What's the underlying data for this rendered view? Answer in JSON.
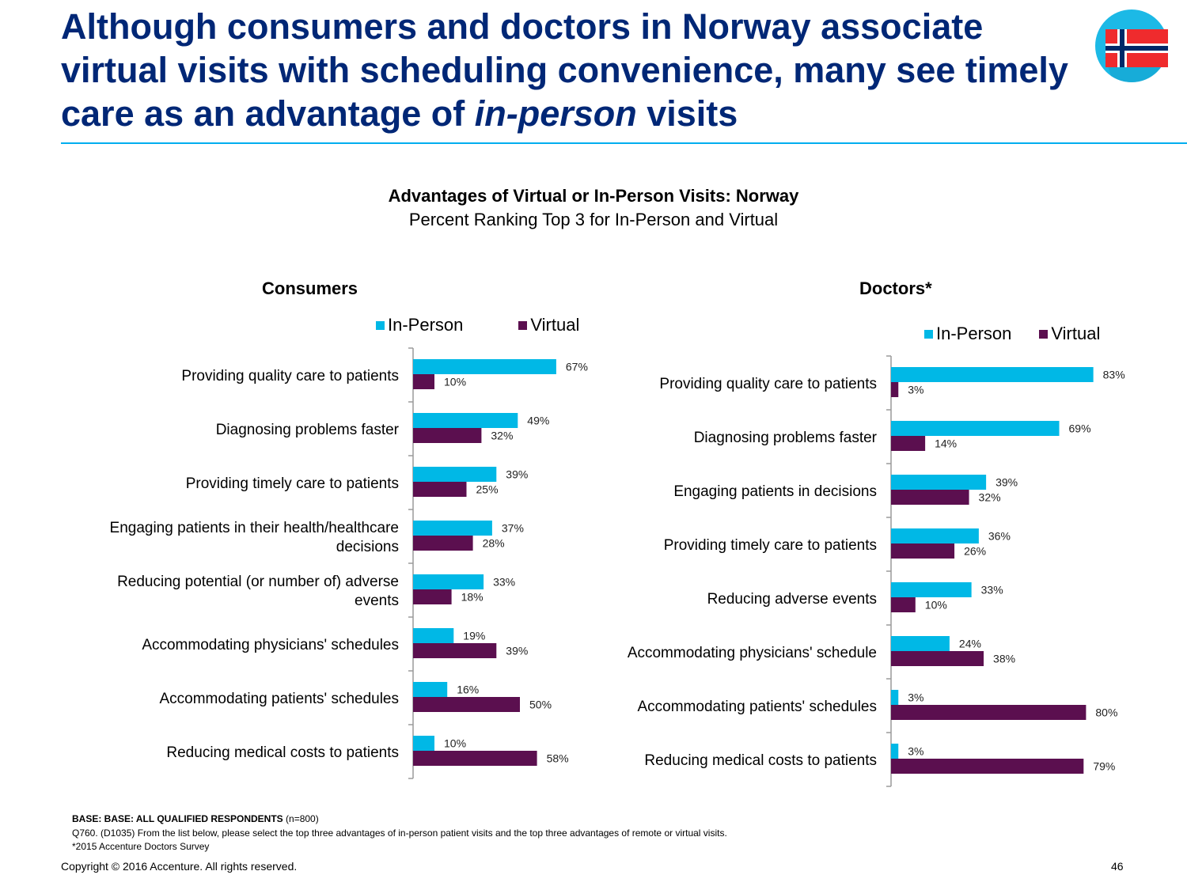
{
  "header": {
    "title_part1": "Although consumers and doctors in Norway associate virtual visits with scheduling convenience, many see timely care as an advantage of ",
    "title_emph": "in-person",
    "title_part2": " visits",
    "flag_icon": "norway-flag-icon"
  },
  "chart_heading": {
    "title": "Advantages of Virtual or In-Person Visits: Norway",
    "subtitle": "Percent Ranking Top 3 for In-Person and Virtual"
  },
  "colors": {
    "in_person": "#00b8e6",
    "virtual": "#5b0f4f",
    "title": "#002776",
    "rule": "#00aeef"
  },
  "chart_data": [
    {
      "type": "bar",
      "orientation": "horizontal",
      "title": "Consumers",
      "legend_position": "top",
      "categories": [
        "Providing quality care to patients",
        "Diagnosing problems faster",
        "Providing timely care to patients",
        "Engaging patients in their health/healthcare decisions",
        "Reducing potential (or number of) adverse events",
        "Accommodating physicians' schedules",
        "Accommodating patients' schedules",
        "Reducing medical costs to patients"
      ],
      "series": [
        {
          "name": "In-Person",
          "values": [
            67,
            49,
            39,
            37,
            33,
            19,
            16,
            10
          ],
          "labels": [
            "67%",
            "49%",
            "39%",
            "37%",
            "33%",
            "19%",
            "16%",
            "10%"
          ]
        },
        {
          "name": "Virtual",
          "values": [
            10,
            32,
            25,
            28,
            18,
            39,
            50,
            58
          ],
          "labels": [
            "10%",
            "32%",
            "25%",
            "28%",
            "18%",
            "39%",
            "50%",
            "58%"
          ]
        }
      ],
      "xlim": [
        0,
        100
      ],
      "grid": false
    },
    {
      "type": "bar",
      "orientation": "horizontal",
      "title": "Doctors*",
      "legend_position": "top",
      "categories": [
        "Providing quality care to patients",
        "Diagnosing problems faster",
        "Engaging patients in decisions",
        "Providing timely care to patients",
        "Reducing adverse events",
        "Accommodating physicians' schedule",
        "Accommodating patients' schedules",
        "Reducing medical costs to patients"
      ],
      "series": [
        {
          "name": "In-Person",
          "values": [
            83,
            69,
            39,
            36,
            33,
            24,
            3,
            3
          ],
          "labels": [
            "83%",
            "69%",
            "39%",
            "36%",
            "33%",
            "24%",
            "3%",
            "3%"
          ]
        },
        {
          "name": "Virtual",
          "values": [
            3,
            14,
            32,
            26,
            10,
            38,
            80,
            79
          ],
          "labels": [
            "3%",
            "14%",
            "32%",
            "26%",
            "10%",
            "38%",
            "80%",
            "79%"
          ]
        }
      ],
      "xlim": [
        0,
        100
      ],
      "grid": false
    }
  ],
  "footnotes": {
    "base_bold": "BASE: BASE: ALL QUALIFIED RESPONDENTS",
    "base_n": " (n=800)",
    "question": "Q760. (D1035)  From the list below, please select the top three advantages of in-person patient visits and the top three advantages of remote or virtual visits.",
    "source": "*2015 Accenture Doctors Survey"
  },
  "footer": {
    "copyright": "Copyright © 2016 Accenture. All rights reserved.",
    "page_number": "46"
  }
}
